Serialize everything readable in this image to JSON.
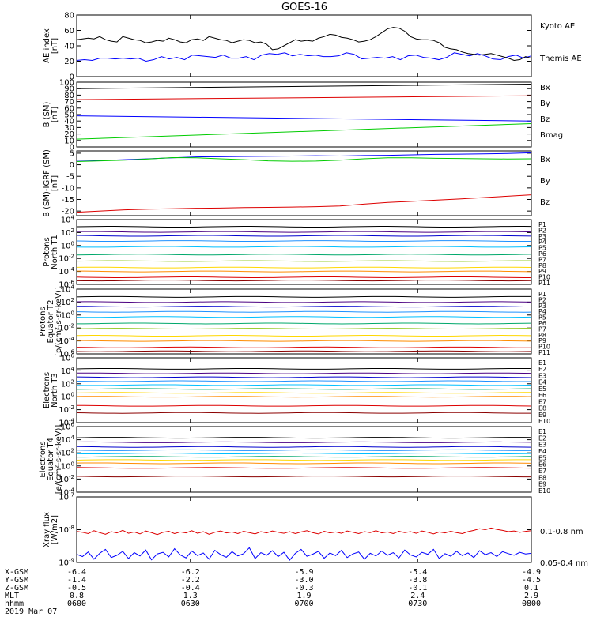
{
  "title": "GOES-16",
  "chart_data": [
    {
      "id": "ae",
      "type": "line",
      "ylabel": [
        "AE index",
        "[nT]"
      ],
      "ylim": [
        0,
        80
      ],
      "yticks": [
        "0",
        "20",
        "40",
        "60",
        "80"
      ],
      "series": [
        {
          "name": "Kyoto AE",
          "color": "#0000ff",
          "y": [
            21,
            22,
            21,
            24,
            24,
            23,
            24,
            23,
            24,
            20,
            22,
            26,
            23,
            25,
            22,
            28,
            27,
            26,
            25,
            28,
            24,
            24,
            26,
            22,
            28,
            30,
            29,
            31,
            27,
            29,
            27,
            28,
            26,
            26,
            27,
            31,
            29,
            23,
            24,
            25,
            24,
            26,
            22,
            27,
            28,
            25,
            24,
            22,
            25,
            31,
            29,
            27,
            30,
            27,
            23,
            22,
            26,
            28,
            24,
            27
          ]
        },
        {
          "name": "Themis AE",
          "color": "#000000",
          "y": [
            48,
            49,
            50,
            49,
            52,
            48,
            46,
            45,
            52,
            50,
            48,
            47,
            44,
            45,
            47,
            46,
            50,
            48,
            45,
            44,
            48,
            49,
            47,
            52,
            50,
            48,
            47,
            44,
            46,
            48,
            47,
            44,
            45,
            42,
            35,
            36,
            40,
            44,
            48,
            46,
            47,
            46,
            50,
            52,
            55,
            54,
            51,
            50,
            48,
            45,
            46,
            48,
            52,
            57,
            62,
            64,
            63,
            59,
            52,
            49,
            48,
            48,
            47,
            44,
            38,
            36,
            35,
            32,
            30,
            29,
            28,
            29,
            30,
            28,
            26,
            24,
            21,
            22,
            26,
            24
          ]
        }
      ],
      "legend": [
        "Kyoto AE",
        "Themis AE"
      ]
    },
    {
      "id": "b",
      "type": "line",
      "ylabel": [
        "B (SM)",
        "[nT]"
      ],
      "ylim": [
        0,
        100
      ],
      "yticks": [
        "0",
        "10",
        "20",
        "30",
        "40",
        "50",
        "60",
        "70",
        "80",
        "90",
        "100"
      ],
      "series": [
        {
          "name": "Bx",
          "color": "#0000ff",
          "start": 48,
          "end": 40
        },
        {
          "name": "By",
          "color": "#00cc00",
          "start": 12,
          "end": 36
        },
        {
          "name": "Bz",
          "color": "#dd0000",
          "start": 73,
          "end": 79
        },
        {
          "name": "Bmag",
          "color": "#000000",
          "start": 90,
          "end": 97
        }
      ],
      "legend": [
        "Bx",
        "By",
        "Bz",
        "Bmag"
      ]
    },
    {
      "id": "bigrf",
      "type": "line",
      "ylabel": [
        "B (SM)-IGRF (SM)",
        "[nT]"
      ],
      "ylim": [
        -22,
        6
      ],
      "yticks": [
        "-20",
        "-15",
        "-10",
        "-5",
        "0",
        "5"
      ],
      "series": [
        {
          "name": "Bx",
          "color": "#0000ff",
          "y": [
            1.5,
            1.8,
            2.2,
            2.6,
            3.0,
            3.4,
            3.5,
            3.6,
            3.7,
            3.8,
            3.9,
            3.8,
            4.0,
            4.1,
            4.3,
            4.5,
            4.6,
            4.7,
            4.9,
            5.2
          ]
        },
        {
          "name": "By",
          "color": "#00cc00",
          "y": [
            1.4,
            1.7,
            2.0,
            2.5,
            3.1,
            3.0,
            2.6,
            2.2,
            1.7,
            1.5,
            1.6,
            2.0,
            2.6,
            3.0,
            3.0,
            2.8,
            2.7,
            2.6,
            2.5,
            2.6
          ]
        },
        {
          "name": "Bz",
          "color": "#dd0000",
          "y": [
            -20.5,
            -20.0,
            -19.5,
            -19.2,
            -19.0,
            -18.8,
            -18.7,
            -18.5,
            -18.4,
            -18.3,
            -18.1,
            -17.8,
            -17.0,
            -16.3,
            -15.8,
            -15.3,
            -14.8,
            -14.2,
            -13.6,
            -13.0
          ]
        }
      ],
      "legend": [
        "Bx",
        "By",
        "Bz"
      ]
    },
    {
      "id": "p1",
      "type": "line",
      "log": true,
      "ylabel": [
        "Protons",
        "North T1"
      ],
      "ylim": [
        -6,
        4
      ],
      "yticks": [
        "10^-6",
        "10^-4",
        "10^-2",
        "10^0",
        "10^2",
        "10^4"
      ],
      "channels": [
        {
          "name": "P1",
          "color": "#000000",
          "y": 2.9
        },
        {
          "name": "P2",
          "color": "#4b0082",
          "y": 2.1
        },
        {
          "name": "P3",
          "color": "#0000cd",
          "y": 1.5
        },
        {
          "name": "P4",
          "color": "#1e90ff",
          "y": 0.7
        },
        {
          "name": "P5",
          "color": "#00bfff",
          "y": -0.2
        },
        {
          "name": "P6",
          "color": "#00a86b",
          "y": -1.4
        },
        {
          "name": "P7",
          "color": "#9acd32",
          "y": -2.4
        },
        {
          "name": "P8",
          "color": "#ffd700",
          "y": -3.4
        },
        {
          "name": "P9",
          "color": "#ff8c00",
          "y": -4.0
        },
        {
          "name": "P10",
          "color": "#dd0000",
          "y": -4.9
        },
        {
          "name": "P11",
          "color": "#8b0000",
          "y": -5.4
        }
      ]
    },
    {
      "id": "p2",
      "type": "line",
      "log": true,
      "ylabel": [
        "Protons",
        "Equator T2",
        "[p/(cm²-s-sr-keV)]"
      ],
      "ylim": [
        -6,
        4
      ],
      "yticks": [
        "10^-6",
        "10^-4",
        "10^-2",
        "10^0",
        "10^2",
        "10^4"
      ],
      "channels": [
        {
          "name": "P1",
          "color": "#000000",
          "y": 2.8
        },
        {
          "name": "P2",
          "color": "#4b0082",
          "y": 2.0
        },
        {
          "name": "P3",
          "color": "#0000cd",
          "y": 1.3
        },
        {
          "name": "P4",
          "color": "#1e90ff",
          "y": 0.5
        },
        {
          "name": "P5",
          "color": "#00bfff",
          "y": -0.3
        },
        {
          "name": "P6",
          "color": "#00a86b",
          "y": -1.3
        },
        {
          "name": "P7",
          "color": "#9acd32",
          "y": -2.1
        },
        {
          "name": "P8",
          "color": "#ffd700",
          "y": -3.2
        },
        {
          "name": "P9",
          "color": "#ff8c00",
          "y": -4.0
        },
        {
          "name": "P10",
          "color": "#dd0000",
          "y": -5.0
        },
        {
          "name": "P11",
          "color": "#8b0000",
          "y": -5.6
        }
      ]
    },
    {
      "id": "e1",
      "type": "line",
      "log": true,
      "ylabel": [
        "Electrons",
        "North T3"
      ],
      "ylim": [
        -4,
        6
      ],
      "yticks": [
        "10^-4",
        "10^-2",
        "10^0",
        "10^2",
        "10^4",
        "10^6"
      ],
      "channels": [
        {
          "name": "E1",
          "color": "#000000",
          "y": 4.3
        },
        {
          "name": "E2",
          "color": "#4b0082",
          "y": 3.6
        },
        {
          "name": "E3",
          "color": "#0000cd",
          "y": 3.0
        },
        {
          "name": "E4",
          "color": "#1e90ff",
          "y": 2.4
        },
        {
          "name": "E5",
          "color": "#00bfff",
          "y": 1.8
        },
        {
          "name": "E6",
          "color": "#00a86b",
          "y": 1.2
        },
        {
          "name": "E7",
          "color": "#ffd700",
          "y": 0.6
        },
        {
          "name": "E8",
          "color": "#ff8c00",
          "y": 0.0
        },
        {
          "name": "E9",
          "color": "#dd0000",
          "y": -1.4
        },
        {
          "name": "E10",
          "color": "#8b0000",
          "y": -2.5
        }
      ]
    },
    {
      "id": "e2",
      "type": "line",
      "log": true,
      "ylabel": [
        "Electrons",
        "Equator T4",
        "[e/(cm²-s-sr-keV)]"
      ],
      "ylim": [
        -4,
        6
      ],
      "yticks": [
        "10^-4",
        "10^-2",
        "10^0",
        "10^2",
        "10^4",
        "10^6"
      ],
      "channels": [
        {
          "name": "E1",
          "color": "#000000",
          "y": 4.3
        },
        {
          "name": "E2",
          "color": "#4b0082",
          "y": 3.6
        },
        {
          "name": "E3",
          "color": "#0000cd",
          "y": 2.9
        },
        {
          "name": "E4",
          "color": "#1e90ff",
          "y": 2.4
        },
        {
          "name": "E5",
          "color": "#00bfff",
          "y": 1.9
        },
        {
          "name": "E6",
          "color": "#00a86b",
          "y": 1.4
        },
        {
          "name": "E7",
          "color": "#ffd700",
          "y": 0.9
        },
        {
          "name": "E8",
          "color": "#ff8c00",
          "y": 0.4
        },
        {
          "name": "E9",
          "color": "#dd0000",
          "y": -0.3
        },
        {
          "name": "E10",
          "color": "#8b0000",
          "y": -1.6
        }
      ]
    },
    {
      "id": "xray",
      "type": "line",
      "log": true,
      "ylabel": [
        "Xray flux",
        "[W/m2]"
      ],
      "ylim": [
        -9,
        -7
      ],
      "yticks": [
        "10^-9",
        "10^-8",
        "10^-7"
      ],
      "series": [
        {
          "name": "0.1-0.8 nm",
          "color": "#dd0000",
          "y": [
            -8.05,
            -8.08,
            -8.12,
            -8.03,
            -8.09,
            -8.14,
            -8.06,
            -8.1,
            -8.02,
            -8.11,
            -8.07,
            -8.13,
            -8.04,
            -8.09,
            -8.15,
            -8.08,
            -8.05,
            -8.12,
            -8.07,
            -8.1,
            -8.03,
            -8.11,
            -8.06,
            -8.14,
            -8.08,
            -8.04,
            -8.1,
            -8.07,
            -8.12,
            -8.05,
            -8.09,
            -8.13,
            -8.06,
            -8.1,
            -8.04,
            -8.08,
            -8.11,
            -8.06,
            -8.12,
            -8.07,
            -8.03,
            -8.09,
            -8.13,
            -8.05,
            -8.1,
            -8.07,
            -8.11,
            -8.04,
            -8.08,
            -8.12,
            -8.06,
            -8.09,
            -8.03,
            -8.1,
            -8.07,
            -8.12,
            -8.05,
            -8.09,
            -8.06,
            -8.11,
            -8.04,
            -8.08,
            -8.13,
            -8.07,
            -8.1,
            -8.05,
            -8.09,
            -8.12,
            -8.06,
            -8.02,
            -7.97,
            -8.0,
            -7.95,
            -7.99,
            -8.02,
            -8.06,
            -8.04,
            -8.08,
            -8.05,
            -8.03
          ]
        },
        {
          "name": "0.05-0.4 nm",
          "color": "#0000ff",
          "y": [
            -8.75,
            -8.82,
            -8.68,
            -8.9,
            -8.72,
            -8.6,
            -8.85,
            -8.78,
            -8.66,
            -8.88,
            -8.7,
            -8.8,
            -8.62,
            -8.92,
            -8.74,
            -8.69,
            -8.83,
            -8.58,
            -8.77,
            -8.86,
            -8.65,
            -8.79,
            -8.71,
            -8.9,
            -8.63,
            -8.76,
            -8.84,
            -8.67,
            -8.8,
            -8.73,
            -8.55,
            -8.88,
            -8.7,
            -8.78,
            -8.64,
            -8.82,
            -8.69,
            -8.93,
            -8.72,
            -8.6,
            -8.81,
            -8.75,
            -8.66,
            -8.87,
            -8.71,
            -8.79,
            -8.63,
            -8.85,
            -8.74,
            -8.68,
            -8.9,
            -8.72,
            -8.8,
            -8.65,
            -8.78,
            -8.7,
            -8.86,
            -8.62,
            -8.77,
            -8.83,
            -8.69,
            -8.75,
            -8.6,
            -8.88,
            -8.73,
            -8.81,
            -8.66,
            -8.79,
            -8.71,
            -8.85,
            -8.64,
            -8.76,
            -8.7,
            -8.82,
            -8.67,
            -8.73,
            -8.78,
            -8.69,
            -8.74,
            -8.72
          ]
        }
      ],
      "legend": [
        "0.1-0.8 nm",
        "0.05-0.4 nm"
      ]
    }
  ],
  "ephemeris": {
    "labels": [
      "X-GSM",
      "Y-GSM",
      "Z-GSM",
      "MLT",
      "hhmm",
      "2019 Mar 07"
    ],
    "columns": [
      {
        "values": [
          "-6.4",
          "-1.4",
          "-0.5",
          "0.8",
          "0600"
        ]
      },
      {
        "values": [
          "-6.2",
          "-2.2",
          "-0.4",
          "1.3",
          "0630"
        ]
      },
      {
        "values": [
          "-5.9",
          "-3.0",
          "-0.3",
          "1.9",
          "0700"
        ]
      },
      {
        "values": [
          "-5.4",
          "-3.8",
          "-0.1",
          "2.4",
          "0730"
        ]
      },
      {
        "values": [
          "-4.9",
          "-4.5",
          "0.1",
          "2.9",
          "0800"
        ]
      }
    ]
  }
}
